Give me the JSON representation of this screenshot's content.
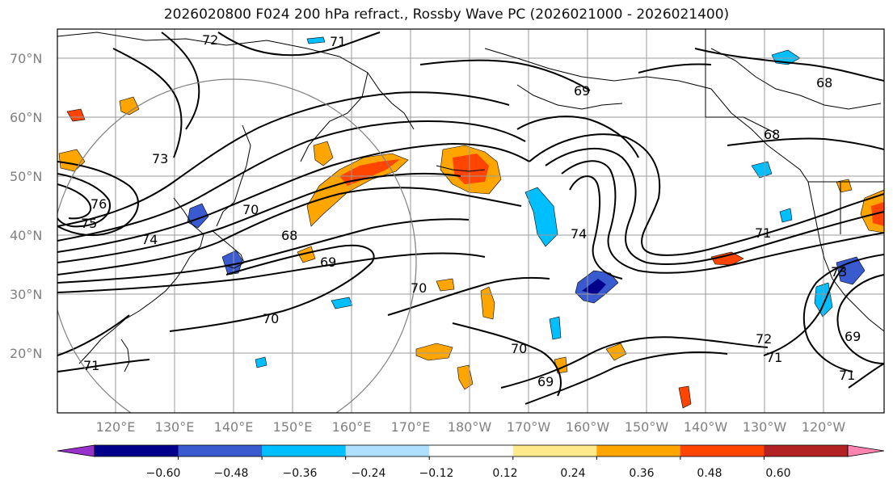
{
  "title": "2026020800 F024 200 hPa refract., Rossby Wave PC (2026021000 - 2026021400)",
  "lat_labels": [
    "70°N",
    "60°N",
    "50°N",
    "40°N",
    "30°N",
    "20°N"
  ],
  "lat_values": [
    70,
    60,
    50,
    40,
    30,
    20
  ],
  "lon_labels": [
    "120°E",
    "130°E",
    "140°E",
    "150°E",
    "160°E",
    "170°E",
    "180°W",
    "170°W",
    "160°W",
    "150°W",
    "140°W",
    "130°W",
    "120°W"
  ],
  "colorbar": {
    "tick_labels": [
      "−0.60",
      "−0.48",
      "−0.36",
      "−0.24",
      "−0.12",
      "0.12",
      "0.24",
      "0.36",
      "0.48",
      "0.60"
    ],
    "colors": [
      "#9932cc",
      "#00008b",
      "#3a5bd0",
      "#00bfff",
      "#b0e0ff",
      "#ffffff",
      "#ffe98a",
      "#ffa500",
      "#ff4500",
      "#b22222",
      "#ff85b0"
    ]
  },
  "contour_labels": [
    "72",
    "71",
    "69",
    "68",
    "68",
    "73",
    "76",
    "75",
    "74",
    "70",
    "68",
    "69",
    "70",
    "70",
    "74",
    "71",
    "72",
    "71",
    "70",
    "69",
    "71",
    "69",
    "71",
    "73"
  ]
}
